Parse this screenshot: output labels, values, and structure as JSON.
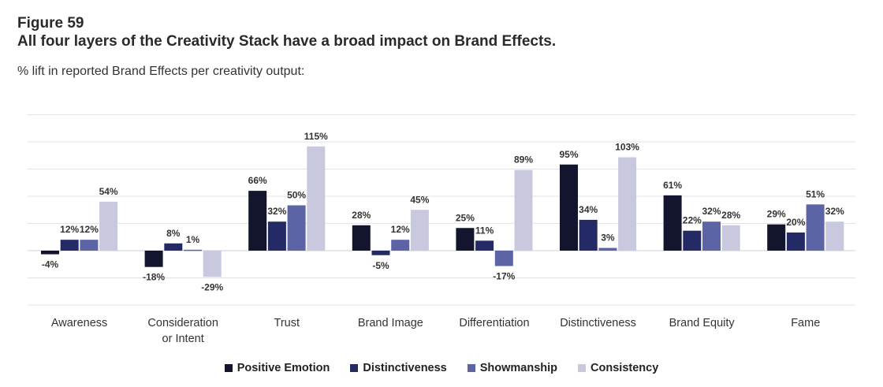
{
  "header": {
    "figure_label": "Figure 59",
    "title": "All four layers of the Creativity Stack have a broad impact on Brand Effects.",
    "subtitle": "% lift in reported Brand Effects per creativity output:"
  },
  "chart_data": {
    "type": "bar",
    "title": "All four layers of the Creativity Stack have a broad impact on Brand Effects.",
    "ylabel": "% lift in reported Brand Effects",
    "xlabel": "",
    "ylim": [
      -60,
      150
    ],
    "ytick_step": 30,
    "grid": true,
    "legend_placement": "bottom-center",
    "categories": [
      [
        "Awareness"
      ],
      [
        "Consideration",
        "or Intent"
      ],
      [
        "Trust"
      ],
      [
        "Brand Image"
      ],
      [
        "Differentiation"
      ],
      [
        "Distinctiveness"
      ],
      [
        "Brand Equity"
      ],
      [
        "Fame"
      ]
    ],
    "series": [
      {
        "name": "Positive Emotion",
        "color": "#12152d",
        "values": [
          -4,
          -18,
          66,
          28,
          25,
          95,
          61,
          29
        ]
      },
      {
        "name": "Distinctiveness",
        "color": "#242a66",
        "values": [
          12,
          8,
          32,
          -5,
          11,
          34,
          22,
          20
        ]
      },
      {
        "name": "Showmanship",
        "color": "#5d64a6",
        "values": [
          12,
          1,
          50,
          12,
          -17,
          3,
          32,
          51
        ]
      },
      {
        "name": "Consistency",
        "color": "#c8c9de",
        "values": [
          54,
          -29,
          115,
          45,
          89,
          103,
          28,
          32
        ]
      }
    ]
  }
}
